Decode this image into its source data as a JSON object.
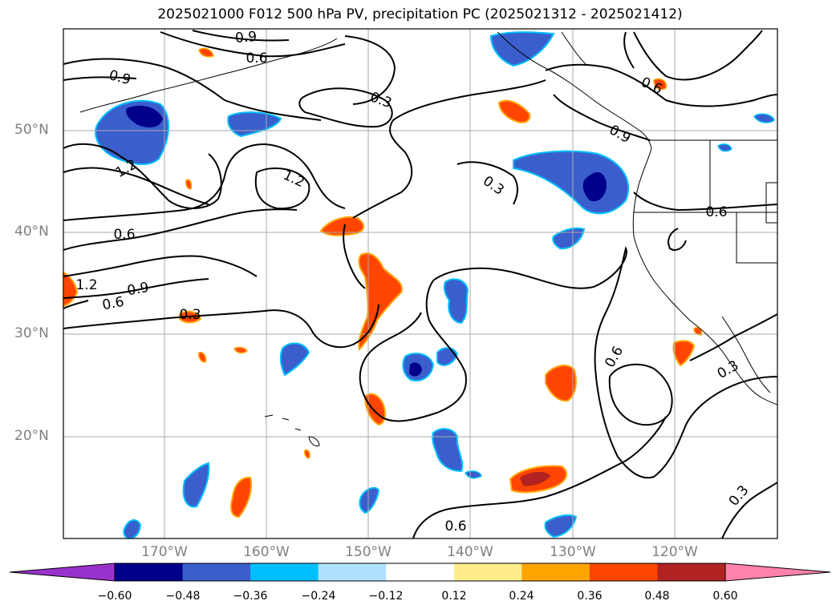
{
  "title": "2025021000 F012 500 hPa PV, precipitation PC (2025021312 - 2025021412)",
  "lat_labels": [
    "50°N",
    "40°N",
    "30°N",
    "20°N"
  ],
  "lon_labels": [
    "170°W",
    "160°W",
    "150°W",
    "140°W",
    "130°W",
    "120°W"
  ],
  "contour_labels": [
    "0.9",
    "0.6",
    "0.9",
    "0.3",
    "1.2",
    "1.2",
    "0.6",
    "1.2",
    "0.9",
    "0.6",
    "0.3",
    "0.6",
    "0.9",
    "0.3",
    "0.6",
    "0.3",
    "0.3",
    "0.6",
    "0.6"
  ],
  "colorbar": {
    "ticks": [
      "−0.60",
      "−0.48",
      "−0.36",
      "−0.24",
      "−0.12",
      "0.12",
      "0.24",
      "0.36",
      "0.48",
      "0.60"
    ],
    "colors": [
      "#9932cc",
      "#00008b",
      "#3a5fcd",
      "#00bfff",
      "#b0e2ff",
      "#ffffff",
      "#ffec8b",
      "#ffa500",
      "#ff4500",
      "#b22222",
      "#ff82ab"
    ]
  }
}
